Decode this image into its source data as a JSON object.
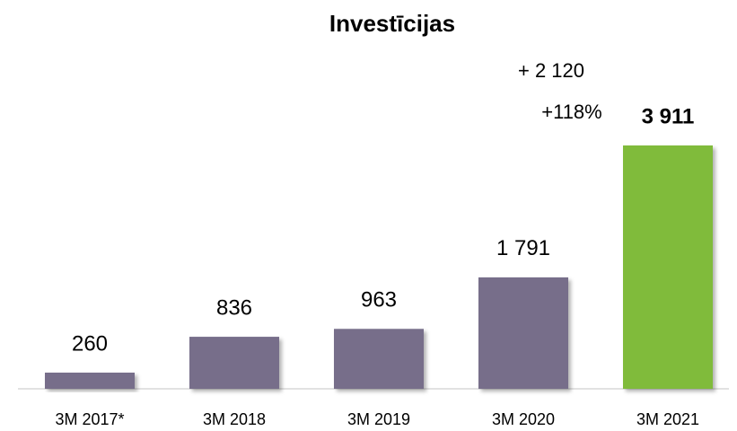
{
  "chart_data": {
    "type": "bar",
    "title": "Investīcijas",
    "categories": [
      "3M 2017*",
      "3M 2018",
      "3M 2019",
      "3M 2020",
      "3M 2021"
    ],
    "values": [
      260,
      836,
      963,
      1791,
      3911
    ],
    "value_labels": [
      "260",
      "836",
      "963",
      "1 791",
      "3 911"
    ],
    "colors": [
      "#776e8a",
      "#776e8a",
      "#776e8a",
      "#776e8a",
      "#80bb3a"
    ],
    "annotations": [
      "+ 2 120",
      "+118%"
    ]
  }
}
